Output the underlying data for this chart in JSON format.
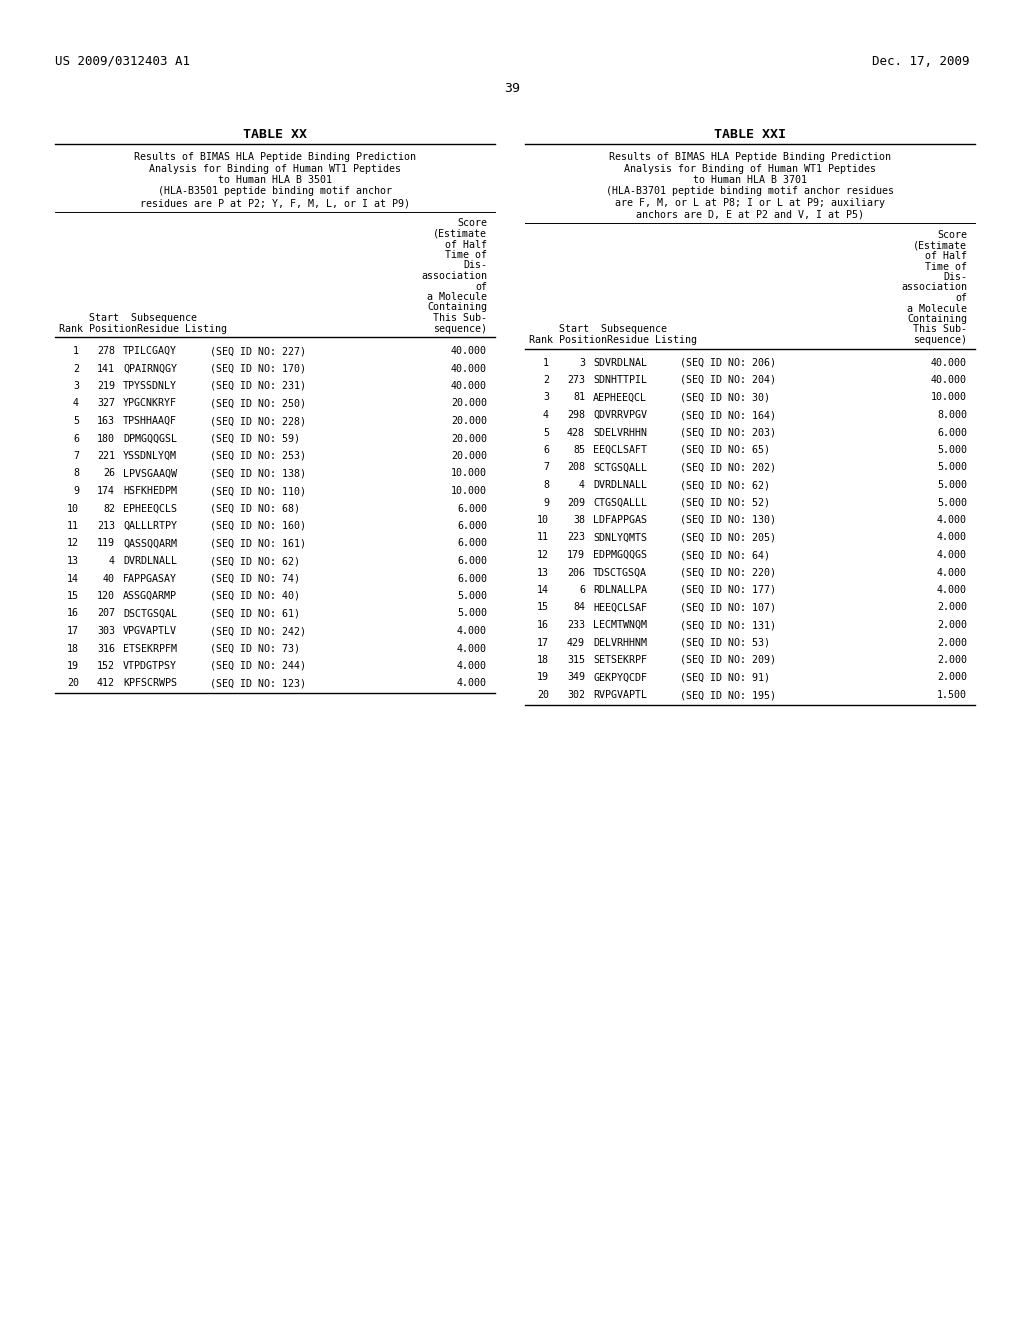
{
  "header_left": "US 2009/0312403 A1",
  "header_right": "Dec. 17, 2009",
  "page_number": "39",
  "table_xx_title": "TABLE XX",
  "table_xxi_title": "TABLE XXI",
  "table_xx_subtitle": [
    "Results of BIMAS HLA Peptide Binding Prediction",
    "Analysis for Binding of Human WT1 Peptides",
    "to Human HLA B 3501",
    "(HLA-B3501 peptide binding motif anchor",
    "residues are P at P2; Y, F, M, L, or I at P9)"
  ],
  "table_xxi_subtitle": [
    "Results of BIMAS HLA Peptide Binding Prediction",
    "Analysis for Binding of Human WT1 Peptides",
    "to Human HLA B 3701",
    "(HLA-B3701 peptide binding motif anchor residues",
    "are F, M, or L at P8; I or L at P9; auxiliary",
    "anchors are D, E at P2 and V, I at P5)"
  ],
  "col_header_lines": [
    "Score",
    "(Estimate",
    "of Half",
    "Time of",
    "Dis-",
    "association",
    "of",
    "a Molecule",
    "Containing",
    "This Sub-",
    "sequence)"
  ],
  "table_xx_data": [
    [
      1,
      278,
      "TPILCGAQY",
      "SEQ ID NO: 227",
      "40.000"
    ],
    [
      2,
      141,
      "QPAIRNQGY",
      "SEQ ID NO: 170",
      "40.000"
    ],
    [
      3,
      219,
      "TPYSSDNLY",
      "SEQ ID NO: 231",
      "40.000"
    ],
    [
      4,
      327,
      "YPGCNKRYF",
      "SEQ ID NO: 250",
      "20.000"
    ],
    [
      5,
      163,
      "TPSHHAAQF",
      "SEQ ID NO: 228",
      "20.000"
    ],
    [
      6,
      180,
      "DPMGQQGSL",
      "SEQ ID NO: 59",
      "20.000"
    ],
    [
      7,
      221,
      "YSSDNLYQM",
      "SEQ ID NO: 253",
      "20.000"
    ],
    [
      8,
      26,
      "LPVSGAAQW",
      "SEQ ID NO: 138",
      "10.000"
    ],
    [
      9,
      174,
      "HSFKHEDPM",
      "SEQ ID NO: 110",
      "10.000"
    ],
    [
      10,
      82,
      "EPHEEQCLS",
      "SEQ ID NO: 68",
      "6.000"
    ],
    [
      11,
      213,
      "QALLLRTPY",
      "SEQ ID NO: 160",
      "6.000"
    ],
    [
      12,
      119,
      "QASSQQARM",
      "SEQ ID NO: 161",
      "6.000"
    ],
    [
      13,
      4,
      "DVRDLNALL",
      "SEQ ID NO: 62",
      "6.000"
    ],
    [
      14,
      40,
      "FAPPGASAY",
      "SEQ ID NO: 74",
      "6.000"
    ],
    [
      15,
      120,
      "ASSGQARMP",
      "SEQ ID NO: 40",
      "5.000"
    ],
    [
      16,
      207,
      "DSCTGSQAL",
      "SEQ ID NO: 61",
      "5.000"
    ],
    [
      17,
      303,
      "VPGVAPTLV",
      "SEQ ID NO: 242",
      "4.000"
    ],
    [
      18,
      316,
      "ETSEKRPFM",
      "SEQ ID NO: 73",
      "4.000"
    ],
    [
      19,
      152,
      "VTPDGTPSY",
      "SEQ ID NO: 244",
      "4.000"
    ],
    [
      20,
      412,
      "KPFSCRWPS",
      "SEQ ID NO: 123",
      "4.000"
    ]
  ],
  "table_xxi_data": [
    [
      1,
      3,
      "SDVRDLNAL",
      "SEQ ID NO: 206",
      "40.000"
    ],
    [
      2,
      273,
      "SDNHTTPIL",
      "SEQ ID NO: 204",
      "40.000"
    ],
    [
      3,
      81,
      "AEPHEEQCL",
      "SEQ ID NO: 30",
      "10.000"
    ],
    [
      4,
      298,
      "QDVRRVPGV",
      "SEQ ID NO: 164",
      "8.000"
    ],
    [
      5,
      428,
      "SDELVRHHN",
      "SEQ ID NO: 203",
      "6.000"
    ],
    [
      6,
      85,
      "EEQCLSAFT",
      "SEQ ID NO: 65",
      "5.000"
    ],
    [
      7,
      208,
      "SCTGSQALL",
      "SEQ ID NO: 202",
      "5.000"
    ],
    [
      8,
      4,
      "DVRDLNALL",
      "SEQ ID NO: 62",
      "5.000"
    ],
    [
      9,
      209,
      "CTGSQALLL",
      "SEQ ID NO: 52",
      "5.000"
    ],
    [
      10,
      38,
      "LDFAPPGAS",
      "SEQ ID NO: 130",
      "4.000"
    ],
    [
      11,
      223,
      "SDNLYQMTS",
      "SEQ ID NO: 205",
      "4.000"
    ],
    [
      12,
      179,
      "EDPMGQQGS",
      "SEQ ID NO: 64",
      "4.000"
    ],
    [
      13,
      206,
      "TDSCTGSQA",
      "SEQ ID NO: 220",
      "4.000"
    ],
    [
      14,
      6,
      "RDLNALLPA",
      "SEQ ID NO: 177",
      "4.000"
    ],
    [
      15,
      84,
      "HEEQCLSAF",
      "SEQ ID NO: 107",
      "2.000"
    ],
    [
      16,
      233,
      "LECMTWNQM",
      "SEQ ID NO: 131",
      "2.000"
    ],
    [
      17,
      429,
      "DELVRHHNM",
      "SEQ ID NO: 53",
      "2.000"
    ],
    [
      18,
      315,
      "SETSEKRPF",
      "SEQ ID NO: 209",
      "2.000"
    ],
    [
      19,
      349,
      "GEKPYQCDF",
      "SEQ ID NO: 91",
      "2.000"
    ],
    [
      20,
      302,
      "RVPGVAPTL",
      "SEQ ID NO: 195",
      "1.500"
    ]
  ],
  "bg_color": "#ffffff",
  "text_color": "#000000",
  "font_size": 7.2,
  "mono_font": "DejaVu Sans Mono"
}
